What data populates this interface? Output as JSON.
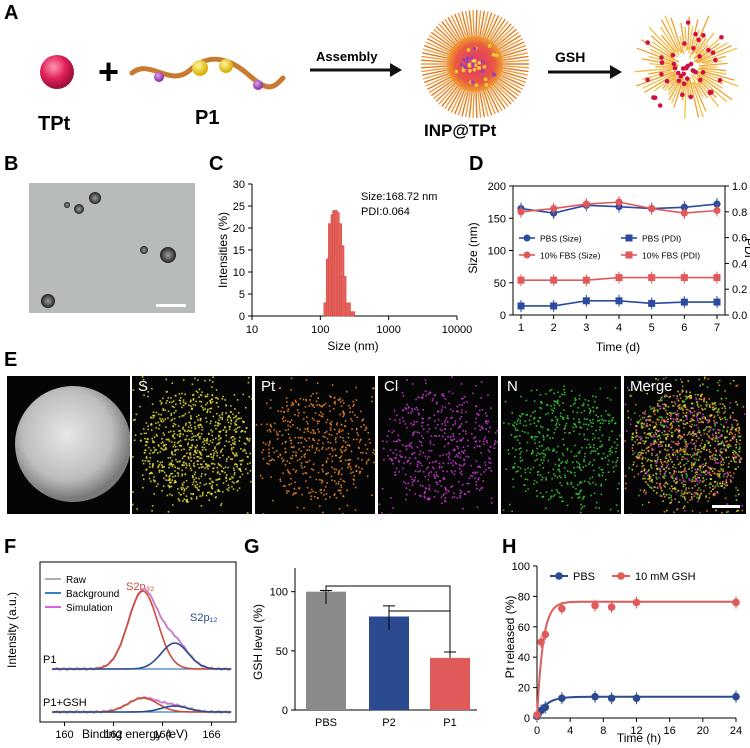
{
  "panels": {
    "A": "A",
    "B": "B",
    "C": "C",
    "D": "D",
    "E": "E",
    "F": "F",
    "G": "G",
    "H": "H"
  },
  "scheme": {
    "tpt_label": "TPt",
    "p1_label": "P1",
    "plus": "+",
    "assembly_label": "Assembly",
    "inp_label": "INP@TPt",
    "gsh_label": "GSH"
  },
  "eds": {
    "channels": [
      "S",
      "Pt",
      "Cl",
      "N",
      "Merge"
    ],
    "colors": {
      "S": "#e8e03a",
      "Pt": "#f08a2a",
      "Cl": "#d23adc",
      "N": "#3ad23a"
    }
  },
  "charts": {
    "C": {
      "type": "bar",
      "annotation_size": "Size:168.72 nm",
      "annotation_pdi": "PDI:0.064",
      "xlabel": "Size (nm)",
      "ylabel": "Intensities (%)",
      "x_ticks": [
        "10",
        "100",
        "1000",
        "10000"
      ],
      "y_ticks": [
        "0",
        "5",
        "10",
        "15",
        "20",
        "25",
        "30"
      ],
      "ylim": [
        0,
        30
      ],
      "bins_nm": [
        122,
        132,
        142,
        155,
        164,
        175,
        190,
        205,
        220,
        255,
        295
      ],
      "values": [
        3,
        13,
        21,
        23,
        24,
        23.5,
        21,
        16,
        9,
        3,
        1
      ],
      "color": "#e8605a"
    },
    "D": {
      "type": "line",
      "x": [
        1,
        2,
        3,
        4,
        5,
        6,
        7
      ],
      "xlabel": "Time (d)",
      "ylabel_left": "Size (nm)",
      "ylabel_right": "PDI",
      "y_left_ticks": [
        "0",
        "50",
        "100",
        "150",
        "200"
      ],
      "y_right_ticks": [
        "0.0",
        "0.2",
        "0.4",
        "0.6",
        "0.8",
        "1.0"
      ],
      "series": [
        {
          "name": "PBS (Size)",
          "axis": "left",
          "color": "#2b4aa0",
          "marker": "circle",
          "values": [
            165,
            158,
            170,
            168,
            165,
            167,
            172
          ]
        },
        {
          "name": "10% FBS (Size)",
          "axis": "left",
          "color": "#e05a5a",
          "marker": "circle",
          "values": [
            160,
            165,
            172,
            175,
            165,
            158,
            162
          ]
        },
        {
          "name": "PBS (PDI)",
          "axis": "right",
          "color": "#2b4aa0",
          "marker": "square",
          "values": [
            0.07,
            0.07,
            0.11,
            0.11,
            0.09,
            0.1,
            0.1
          ]
        },
        {
          "name": "10% FBS (PDI)",
          "axis": "right",
          "color": "#e05a5a",
          "marker": "square",
          "values": [
            0.27,
            0.27,
            0.27,
            0.29,
            0.29,
            0.29,
            0.29
          ]
        }
      ]
    },
    "F": {
      "type": "line",
      "xlabel": "Binding energy (eV)",
      "ylabel": "Intensity (a.u.)",
      "x_ticks": [
        "160",
        "162",
        "164",
        "166"
      ],
      "xlim": [
        159,
        167
      ],
      "legend": [
        "Raw",
        "Background",
        "Simulation"
      ],
      "legend_colors": [
        "#b0b0b0",
        "#3a7fc0",
        "#e060e0"
      ],
      "peak1": "S2p₃₂",
      "peak2": "S2p₁₂",
      "trace1": "P1",
      "trace2": "P1+GSH"
    },
    "G": {
      "type": "bar",
      "categories": [
        "PBS",
        "P2",
        "P1"
      ],
      "values": [
        100,
        79,
        44
      ],
      "errors": [
        1,
        9,
        5
      ],
      "colors": [
        "#8a8a8a",
        "#2b4a90",
        "#e05a5a"
      ],
      "ylabel": "GSH level (%)",
      "y_ticks": [
        "0",
        "50",
        "100"
      ],
      "ylim": [
        0,
        120
      ],
      "sig1": "**",
      "sig2": "*"
    },
    "H": {
      "type": "line",
      "x": [
        0,
        0.5,
        1,
        3,
        7,
        9,
        12,
        24
      ],
      "xlabel": "Time (h)",
      "ylabel": "Pt released (%)",
      "x_ticks": [
        "0",
        "4",
        "8",
        "12",
        "16",
        "20",
        "24"
      ],
      "y_ticks": [
        "0",
        "20",
        "40",
        "60",
        "80",
        "100"
      ],
      "ylim": [
        0,
        100
      ],
      "series": [
        {
          "name": "PBS",
          "color": "#2b4a90",
          "values": [
            1,
            5,
            7,
            13,
            14,
            13,
            13,
            14
          ]
        },
        {
          "name": "10 mM GSH",
          "color": "#e05a5a",
          "values": [
            2,
            50,
            55,
            72,
            74,
            73,
            76,
            76
          ]
        }
      ]
    }
  },
  "chart_data": [
    {
      "type": "bar",
      "title": "C",
      "categories": [
        "122",
        "132",
        "142",
        "155",
        "164",
        "175",
        "190",
        "205",
        "220",
        "255",
        "295"
      ],
      "values": [
        3,
        13,
        21,
        23,
        24,
        23.5,
        21,
        16,
        9,
        3,
        1
      ],
      "xlabel": "Size (nm)",
      "ylabel": "Intensities (%)",
      "ylim": [
        0,
        30
      ]
    },
    {
      "type": "line",
      "title": "D",
      "x": [
        1,
        2,
        3,
        4,
        5,
        6,
        7
      ],
      "series": [
        {
          "name": "PBS (Size)",
          "values": [
            165,
            158,
            170,
            168,
            165,
            167,
            172
          ]
        },
        {
          "name": "10% FBS (Size)",
          "values": [
            160,
            165,
            172,
            175,
            165,
            158,
            162
          ]
        },
        {
          "name": "PBS (PDI)",
          "values": [
            0.07,
            0.07,
            0.11,
            0.11,
            0.09,
            0.1,
            0.1
          ]
        },
        {
          "name": "10% FBS (PDI)",
          "values": [
            0.27,
            0.27,
            0.27,
            0.29,
            0.29,
            0.29,
            0.29
          ]
        }
      ],
      "xlabel": "Time (d)",
      "ylabel": "Size (nm)"
    },
    {
      "type": "bar",
      "title": "G",
      "categories": [
        "PBS",
        "P2",
        "P1"
      ],
      "values": [
        100,
        79,
        44
      ],
      "ylabel": "GSH level (%)",
      "ylim": [
        0,
        120
      ]
    },
    {
      "type": "line",
      "title": "H",
      "x": [
        0,
        0.5,
        1,
        3,
        7,
        9,
        12,
        24
      ],
      "series": [
        {
          "name": "PBS",
          "values": [
            1,
            5,
            7,
            13,
            14,
            13,
            13,
            14
          ]
        },
        {
          "name": "10 mM GSH",
          "values": [
            2,
            50,
            55,
            72,
            74,
            73,
            76,
            76
          ]
        }
      ],
      "xlabel": "Time (h)",
      "ylabel": "Pt released (%)",
      "ylim": [
        0,
        100
      ]
    }
  ]
}
